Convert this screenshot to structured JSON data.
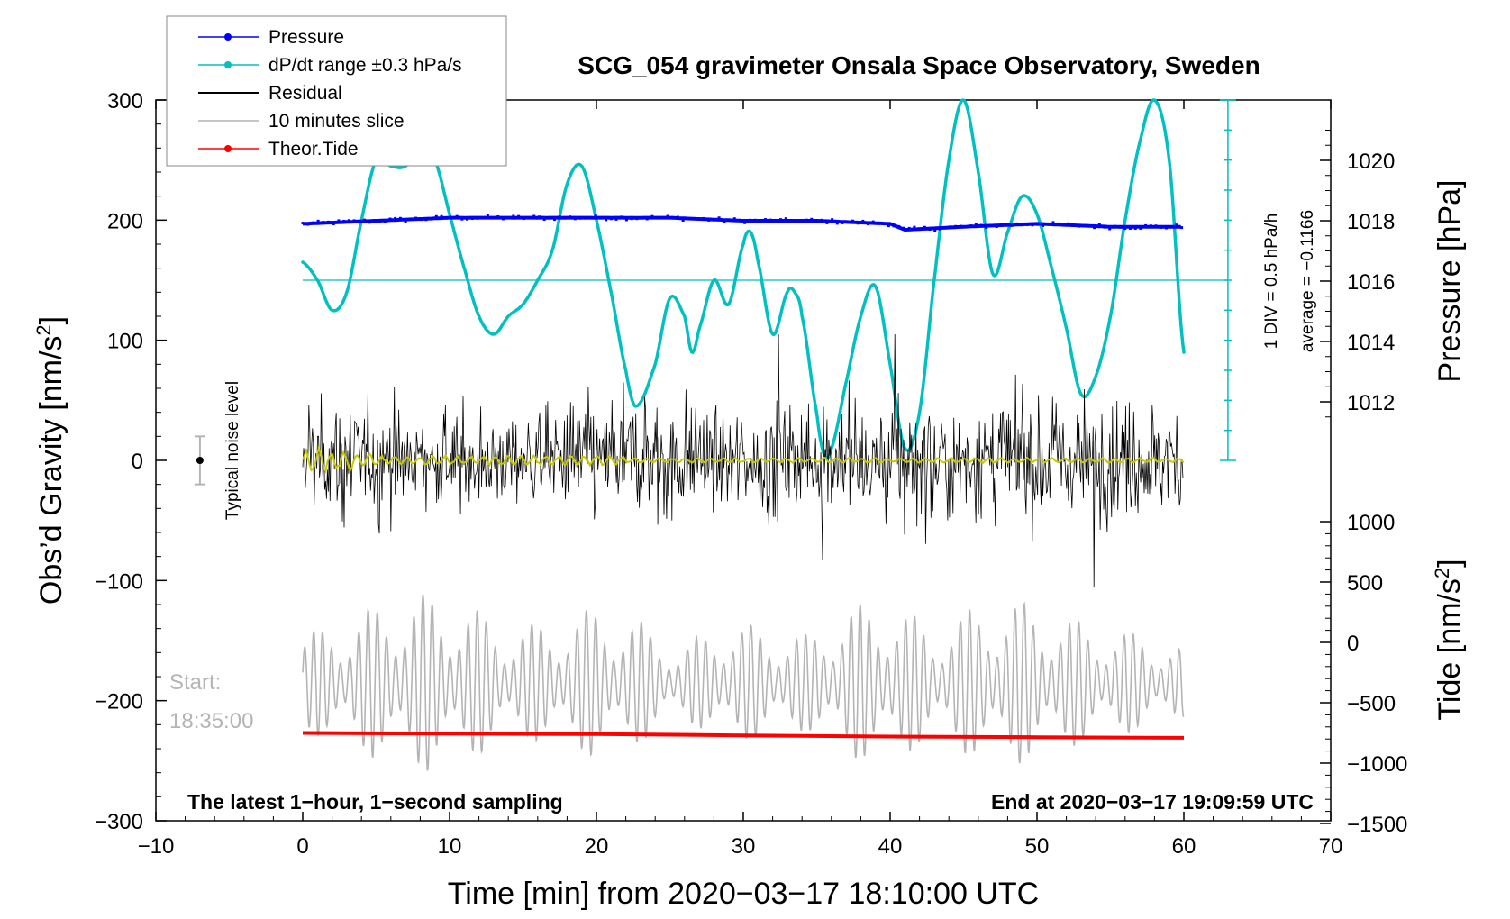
{
  "chart_data": {
    "type": "line",
    "title": "SCG_054 gravimeter Onsala Space Observatory, Sweden",
    "xlabel": "Time [min] from 2020−03−17 18:10:00 UTC",
    "ylabel_left": "Obs’d Gravity [nm/s",
    "ylabel_left_sup": "2",
    "ylabel_left_end": "]",
    "ylabel_right_pressure": "Pressure [hPa]",
    "ylabel_right_tide": "Tide [nm/s",
    "ylabel_right_tide_sup": "2",
    "ylabel_right_tide_end": "]",
    "xlim": [
      -10,
      70
    ],
    "ylim": [
      -300,
      300
    ],
    "pressure_lim": [
      1010,
      1022
    ],
    "tide_lim": [
      -1500,
      1500
    ],
    "x_ticks": [
      "−10",
      "0",
      "10",
      "20",
      "30",
      "40",
      "50",
      "60",
      "70"
    ],
    "y_ticks": [
      "300",
      "200",
      "100",
      "0",
      "−100",
      "−200",
      "−300"
    ],
    "pressure_ticks": [
      "1020",
      "1018",
      "1016",
      "1014",
      "1012"
    ],
    "tide_ticks": [
      "1000",
      "500",
      "0",
      "−500",
      "−1000",
      "−1500"
    ],
    "legend": [
      {
        "label": "Pressure",
        "color": "#0000ff",
        "marker": true
      },
      {
        "label": "dP/dt range ±0.3 hPa/s",
        "color": "#00c0c0",
        "marker": true
      },
      {
        "label": "Residual",
        "color": "#000000",
        "marker": false
      },
      {
        "label": "10 minutes slice",
        "color": "#b4b4b4",
        "marker": false
      },
      {
        "label": "Theor.Tide",
        "color": "#ff0000",
        "marker": true
      }
    ],
    "annotations": {
      "noise_level": "Typical noise level",
      "scale_div": "1 DIV = 0.5 hPa/h",
      "average": "average = −0.1166",
      "start_label": "Start:",
      "start_time": "18:35:00",
      "latest": "The latest 1−hour, 1−second sampling",
      "end_at": "End at 2020−03−17 19:09:59 UTC"
    },
    "series": [
      {
        "name": "Pressure",
        "axis": "pressure",
        "color": "#0000ff",
        "x": [
          0,
          5,
          10,
          15,
          20,
          25,
          30,
          35,
          40,
          41,
          45,
          50,
          55,
          60
        ],
        "values": [
          1017.9,
          1018.0,
          1018.1,
          1018.1,
          1018.1,
          1018.1,
          1018.0,
          1018.0,
          1017.9,
          1017.7,
          1017.8,
          1017.9,
          1017.8,
          1017.8
        ]
      },
      {
        "name": "dP/dt range ±0.3 hPa/s",
        "axis": "left",
        "color": "#00c0c0",
        "x": [
          0,
          1,
          2,
          3,
          4,
          5,
          6,
          7,
          8,
          9,
          10,
          11,
          12,
          13,
          14,
          15,
          16,
          17,
          18,
          19,
          20,
          21,
          22,
          22.7,
          24,
          25,
          26,
          26.5,
          27,
          28,
          29,
          30,
          30.5,
          31,
          32,
          33,
          33.5,
          34,
          35,
          35.5,
          36,
          37,
          38,
          39,
          40,
          41,
          42,
          43,
          44,
          45,
          46,
          47,
          48,
          49,
          50,
          51,
          52,
          53,
          54,
          55,
          56,
          57,
          58,
          59,
          60
        ],
        "values": [
          165,
          150,
          125,
          140,
          200,
          250,
          245,
          245,
          260,
          250,
          205,
          160,
          120,
          105,
          120,
          130,
          150,
          175,
          230,
          245,
          200,
          140,
          75,
          45,
          80,
          135,
          120,
          90,
          110,
          150,
          130,
          180,
          190,
          165,
          105,
          140,
          140,
          120,
          40,
          5,
          10,
          65,
          120,
          145,
          80,
          10,
          40,
          150,
          250,
          300,
          240,
          155,
          190,
          220,
          205,
          160,
          110,
          55,
          70,
          120,
          200,
          265,
          300,
          250,
          90
        ]
      },
      {
        "name": "Residual",
        "axis": "left",
        "color": "#000000",
        "x_range": [
          0,
          60
        ],
        "amplitude_envelope": [
          60,
          70,
          70,
          60,
          60,
          55,
          60,
          75,
          80,
          75,
          60,
          75,
          75,
          70,
          80,
          75,
          70,
          80,
          80,
          75,
          75,
          70
        ]
      },
      {
        "name": "Residual mean (filtered)",
        "axis": "left",
        "color": "#c8c800",
        "x_range": [
          0,
          60
        ],
        "values": [
          0
        ]
      },
      {
        "name": "10 minutes slice",
        "axis": "left",
        "color": "#b4b4b4",
        "x_range": [
          0,
          60
        ],
        "center": -185,
        "amplitude_envelope": [
          35,
          45,
          60,
          65,
          55,
          40,
          45,
          55,
          45,
          25,
          45,
          40,
          35,
          55,
          60,
          40,
          55,
          60,
          50,
          40,
          35,
          25
        ]
      },
      {
        "name": "Theor.Tide",
        "axis": "tide",
        "color": "#ff0000",
        "x": [
          0,
          10,
          20,
          30,
          40,
          50,
          60
        ],
        "values": [
          -750,
          -755,
          -760,
          -770,
          -780,
          -785,
          -790
        ]
      }
    ],
    "noise_level": {
      "x": -7,
      "center": 0,
      "half_range": 20
    }
  }
}
